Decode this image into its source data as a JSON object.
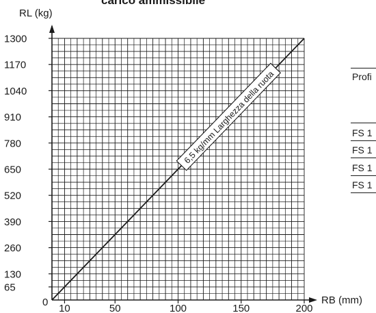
{
  "title": "carico ammissibile",
  "chart_data": {
    "type": "line",
    "xlabel": "RB (mm)",
    "ylabel": "RL (kg)",
    "xlim": [
      0,
      200
    ],
    "ylim": [
      0,
      1300
    ],
    "x_ticks": [
      {
        "value": 10,
        "label": "10"
      },
      {
        "value": 50,
        "label": "50"
      },
      {
        "value": 100,
        "label": "100"
      },
      {
        "value": 150,
        "label": "150"
      },
      {
        "value": 200,
        "label": "200"
      }
    ],
    "y_ticks": [
      {
        "value": 65,
        "label": "65"
      },
      {
        "value": 130,
        "label": "130"
      },
      {
        "value": 260,
        "label": "260"
      },
      {
        "value": 390,
        "label": "390"
      },
      {
        "value": 520,
        "label": "520"
      },
      {
        "value": 650,
        "label": "650"
      },
      {
        "value": 780,
        "label": "780"
      },
      {
        "value": 910,
        "label": "910"
      },
      {
        "value": 1040,
        "label": "1040"
      },
      {
        "value": 1170,
        "label": "1170"
      },
      {
        "value": 1300,
        "label": "1300"
      }
    ],
    "origin_label": "0",
    "grid": true,
    "series": [
      {
        "name": "6,5 kg/mm Larghezza della ruota",
        "x": [
          0,
          200
        ],
        "y": [
          0,
          1300
        ]
      }
    ]
  },
  "side_table": {
    "header": "Profi",
    "rows": [
      "FS 1",
      "FS 1",
      "FS 1",
      "FS 1"
    ]
  }
}
